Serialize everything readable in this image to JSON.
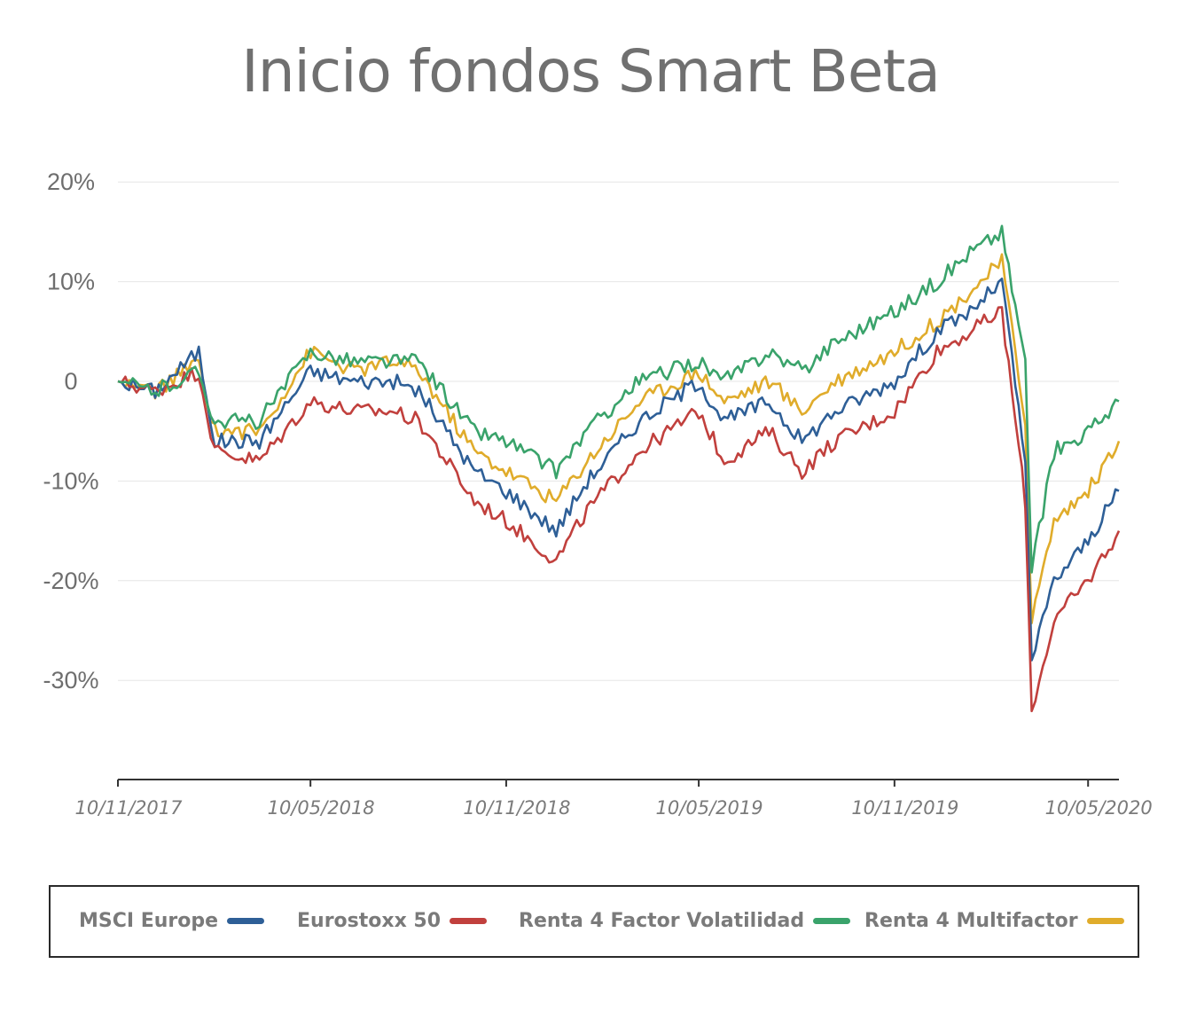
{
  "chart_data": {
    "type": "line",
    "title": "Inicio fondos Smart Beta",
    "xlabel": "",
    "ylabel": "",
    "x_tick_labels": [
      "10/11/2017",
      "10/05/2018",
      "10/11/2018",
      "10/05/2019",
      "10/11/2019",
      "10/05/2020"
    ],
    "y_tick_labels": [
      "20%",
      "10%",
      "0",
      "-10%",
      "-20%",
      "-30%"
    ],
    "y_tick_values": [
      20,
      10,
      0,
      -10,
      -20,
      -30
    ],
    "ylim": [
      -40,
      20
    ],
    "x_dates": [
      "2017-11-10",
      "2017-12-15",
      "2018-01-25",
      "2018-02-09",
      "2018-03-23",
      "2018-05-10",
      "2018-06-20",
      "2018-07-27",
      "2018-08-20",
      "2018-10-11",
      "2018-11-10",
      "2018-12-27",
      "2019-01-25",
      "2019-03-15",
      "2019-05-10",
      "2019-06-03",
      "2019-07-15",
      "2019-08-15",
      "2019-09-15",
      "2019-11-10",
      "2019-12-20",
      "2020-01-20",
      "2020-02-19",
      "2020-03-12",
      "2020-03-18",
      "2020-04-08",
      "2020-05-10",
      "2020-06-08"
    ],
    "series": [
      {
        "name": "MSCI Europe",
        "color": "#2e5f97",
        "values": [
          0,
          -1,
          3,
          -6,
          -6,
          1,
          0,
          0,
          -1,
          -9,
          -11,
          -15,
          -10,
          -4,
          0,
          -4,
          -2,
          -6,
          -3,
          0,
          5,
          7,
          10,
          -8,
          -28,
          -20,
          -16,
          -11
        ]
      },
      {
        "name": "Eurostoxx 50",
        "color": "#c1403d",
        "values": [
          0,
          -1,
          1,
          -7,
          -8,
          -2,
          -3,
          -3,
          -4,
          -12,
          -14,
          -18,
          -13,
          -7,
          -3,
          -8,
          -5,
          -9,
          -6,
          -3,
          3,
          5,
          7,
          -12,
          -33,
          -24,
          -20,
          -15
        ]
      },
      {
        "name": "Renta 4 Factor Volatilidad",
        "color": "#3aa36b",
        "values": [
          0,
          -1,
          1,
          -4,
          -4,
          3,
          2,
          2,
          2,
          -5,
          -6,
          -9,
          -5,
          0,
          2,
          0,
          3,
          1,
          4,
          7,
          10,
          13,
          15,
          2,
          -19,
          -7,
          -5,
          -2
        ]
      },
      {
        "name": "Renta 4 Multifactor",
        "color": "#e0ac2b",
        "values": [
          0,
          -1,
          2,
          -5,
          -5,
          3,
          1,
          2,
          1,
          -7,
          -9,
          -12,
          -8,
          -2,
          1,
          -2,
          0,
          -3,
          0,
          3,
          6,
          9,
          12,
          -4,
          -24,
          -14,
          -11,
          -6
        ]
      }
    ],
    "grid": true,
    "legend_position": "bottom"
  },
  "legend": {
    "items": [
      {
        "label": "MSCI Europe",
        "color": "#2e5f97"
      },
      {
        "label": "Eurostoxx 50",
        "color": "#c1403d"
      },
      {
        "label": "Renta 4 Factor Volatilidad",
        "color": "#3aa36b"
      },
      {
        "label": "Renta 4 Multifactor",
        "color": "#e0ac2b"
      }
    ]
  }
}
